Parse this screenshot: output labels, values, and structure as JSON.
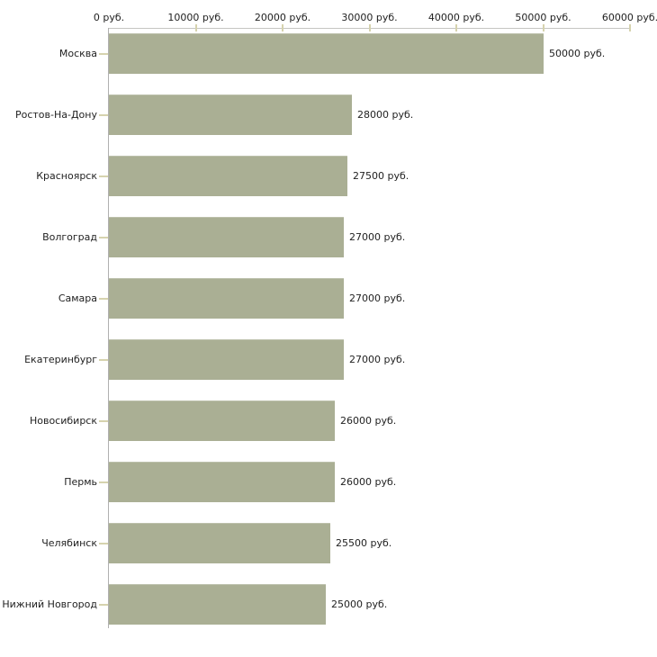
{
  "chart_data": {
    "type": "bar",
    "orientation": "horizontal",
    "title": "",
    "xlabel": "",
    "ylabel": "",
    "unit": "руб.",
    "grid": "off",
    "legend": "none",
    "xlim": [
      0,
      60000
    ],
    "x_tick_values": [
      0,
      10000,
      20000,
      30000,
      40000,
      50000,
      60000
    ],
    "x_tick_labels": [
      "0 руб.",
      "10000 руб.",
      "20000 руб.",
      "30000 руб.",
      "40000 руб.",
      "50000 руб.",
      "60000 руб."
    ],
    "categories": [
      "Москва",
      "Ростов-На-Дону",
      "Красноярск",
      "Волгоград",
      "Самара",
      "Екатеринбург",
      "Новосибирск",
      "Пермь",
      "Челябинск",
      "Нижний Новгород"
    ],
    "values": [
      50000,
      28000,
      27500,
      27000,
      27000,
      27000,
      26000,
      26000,
      25500,
      25000
    ],
    "value_labels": [
      "50000 руб.",
      "28000 руб.",
      "27500 руб.",
      "27000 руб.",
      "27000 руб.",
      "27000 руб.",
      "26000 руб.",
      "26000 руб.",
      "25500 руб.",
      "25000 руб."
    ],
    "colors": {
      "bar": "#aaaf94",
      "tick": "#d6d3ae",
      "x_axis_line": "#c6c6c2",
      "y_axis_line": "#b0b0b0",
      "text": "#222222",
      "background": "#ffffff"
    }
  }
}
